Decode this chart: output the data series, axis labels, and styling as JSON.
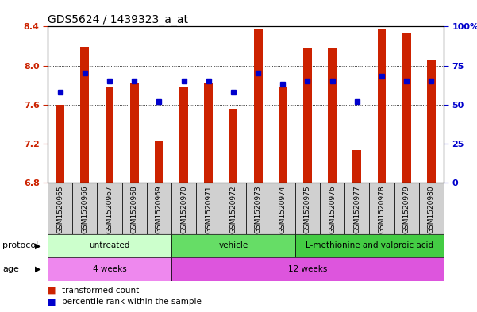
{
  "title": "GDS5624 / 1439323_a_at",
  "samples": [
    "GSM1520965",
    "GSM1520966",
    "GSM1520967",
    "GSM1520968",
    "GSM1520969",
    "GSM1520970",
    "GSM1520971",
    "GSM1520972",
    "GSM1520973",
    "GSM1520974",
    "GSM1520975",
    "GSM1520976",
    "GSM1520977",
    "GSM1520978",
    "GSM1520979",
    "GSM1520980"
  ],
  "transformed_count": [
    7.6,
    8.19,
    7.78,
    7.82,
    7.22,
    7.78,
    7.82,
    7.56,
    8.37,
    7.78,
    8.18,
    8.18,
    7.13,
    8.38,
    8.33,
    8.06
  ],
  "percentile_rank": [
    58,
    70,
    65,
    65,
    52,
    65,
    65,
    58,
    70,
    63,
    65,
    65,
    52,
    68,
    65,
    65
  ],
  "ylim_left": [
    6.8,
    8.4
  ],
  "ylim_right": [
    0,
    100
  ],
  "yticks_left": [
    6.8,
    7.2,
    7.6,
    8.0,
    8.4
  ],
  "yticks_right": [
    0,
    25,
    50,
    75,
    100
  ],
  "bar_color": "#cc2200",
  "dot_color": "#0000cc",
  "protocol_groups": [
    {
      "label": "untreated",
      "start": 0,
      "end": 5,
      "color": "#ccffcc"
    },
    {
      "label": "vehicle",
      "start": 5,
      "end": 10,
      "color": "#66dd66"
    },
    {
      "label": "L-methionine and valproic acid",
      "start": 10,
      "end": 16,
      "color": "#44cc44"
    }
  ],
  "age_groups": [
    {
      "label": "4 weeks",
      "start": 0,
      "end": 5,
      "color": "#ee88ee"
    },
    {
      "label": "12 weeks",
      "start": 5,
      "end": 16,
      "color": "#dd55dd"
    }
  ],
  "protocol_label": "protocol",
  "age_label": "age",
  "legend_red_label": "transformed count",
  "legend_blue_label": "percentile rank within the sample",
  "bar_color_legend": "#cc2200",
  "dot_color_legend": "#0000cc",
  "xticklabel_fontsize": 6.5,
  "title_fontsize": 10,
  "tick_label_color_left": "#cc2200",
  "tick_label_color_right": "#0000cc",
  "ytick_fontsize": 8,
  "bar_width": 0.35
}
